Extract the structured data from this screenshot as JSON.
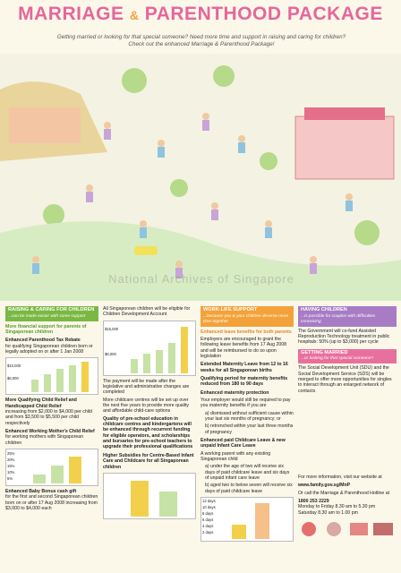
{
  "header": {
    "title_left": "MARRIAGE",
    "amp": "&",
    "title_right": "PARENTHOOD PACKAGE",
    "subtitle": "Getting married or looking for that special someone? Need more time and support in raising and caring for children? Check out the enhanced Marriage & Parenthood Package!"
  },
  "watermark": "National Archives of Singapore",
  "col1": {
    "band": "RAISING & CARING FOR CHILDREN",
    "band_sub": "...can be made easier with some support",
    "heading": "More financial support for parents of Singaporean children",
    "items": [
      {
        "title": "Enhanced Parenthood Tax Rebate",
        "text": "for qualifying Singaporean children born or legally adopted on or after 1 Jan 2008"
      },
      {
        "title": "More Qualifying Child Relief and Handicapped Child Relief",
        "text": "increasing from $2,000 to $4,000 per child and from $3,500 to $5,500 per child respectively"
      },
      {
        "title": "Enhanced Working Mother's Child Relief",
        "text": "for working mothers with Singaporean children"
      },
      {
        "title": "Enhanced Baby Bonus cash gift",
        "text": "for the first and second Singaporean children born on or after 17 Aug 2008 increasing from $3,000 to $4,000 each"
      }
    ],
    "chart1_labels": [
      "$10,000",
      "$6,000"
    ],
    "chart2_labels": [
      "25%",
      "20%",
      "15%",
      "10%",
      "5%"
    ]
  },
  "col2": {
    "intro": "All Singaporean children will be eligible for Children Development Account",
    "chart_labels": [
      "$15,000",
      "$6,000"
    ],
    "paras": [
      "The payment will be made after the legislative and administrative changes are completed",
      "More childcare centres will be set up over the next five years to provide more quality and affordable child-care options",
      "Quality of pre-school education in childcare centres and kindergartens will be enhanced through recurrent funding for eligible operators, and scholarships and bursaries for pre-school teachers to upgrade their professional qualifications"
    ],
    "subsidy": "Higher Subsidies for Centre-Based Infant Care and Childcare for all Singaporean children"
  },
  "col3": {
    "band": "WORK-LIFE SUPPORT",
    "band_sub": "...because you & your children deserve more time together",
    "heading": "Enhanced leave benefits for both parents",
    "paras": [
      "Employers are encouraged to grant the following leave benefits from 17 Aug 2008 and will be reimbursed to do so upon legislation",
      "Extended Maternity Leave from 12 to 16 weeks for all Singaporean births",
      "Qualifying period for maternity benefits reduced from 180 to 90 days",
      "Enhanced maternity protection",
      "Your employer would still be required to pay you maternity benefits if you are",
      "a) dismissed without sufficient cause within your last six months of pregnancy; or",
      "b) retrenched within your last three months of pregnancy",
      "Enhanced paid Childcare Leave & new unpaid Infant Care Leave",
      "A working parent with any existing Singaporean child",
      "a) under the age of two will receive six days of paid childcare leave and six days of unpaid infant care leave",
      "b) aged two to below seven will receive six days of paid childcare leave"
    ],
    "chart_labels": [
      "12 days",
      "10 days",
      "8 days",
      "6 days",
      "4 days",
      "2 days"
    ]
  },
  "col4": {
    "band1": "HAVING CHILDREN",
    "band1_sub": "...is possible for couples with difficulties conceiving",
    "text1": "The Government will co-fund Assisted Reproduction Technology treatment in public hospitals: 50% (up to $3,000) per cycle",
    "band2": "GETTING MARRIED",
    "band2_sub": "...or looking for that special someone?",
    "text2": "The Social Development Unit (SDU) and the Social Development Service (SDS) will be merged to offer more opportunities for singles to interact through an enlarged network of contacts",
    "info": "For more information, visit our website at",
    "web": "www.family.gov.sg/MnP",
    "hotline": "Or call the Marriage & Parenthood Hotline at",
    "phone": "1800 253 2229",
    "hours1": "Monday to Friday  8.30 am to 5.30 pm",
    "hours2": "Saturday  8.30 am to 1.00 pm"
  }
}
